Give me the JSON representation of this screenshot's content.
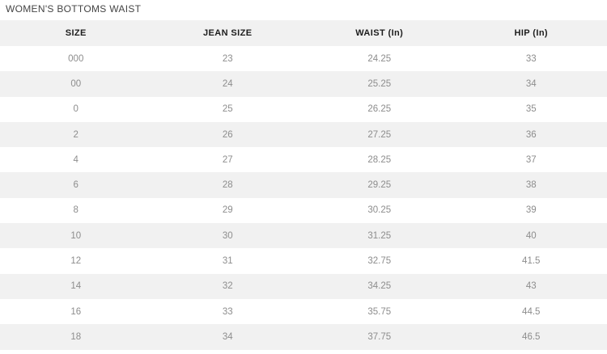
{
  "title": "WOMEN'S BOTTOMS WAIST",
  "colors": {
    "stripe": "#f1f1f1",
    "header_text": "#1d1d1d",
    "cell_text": "#8d8d8d",
    "title_text": "#454545"
  },
  "table": {
    "columns": [
      "SIZE",
      "JEAN SIZE",
      "WAIST (In)",
      "HIP (In)"
    ],
    "rows": [
      [
        "000",
        "23",
        "24.25",
        "33"
      ],
      [
        "00",
        "24",
        "25.25",
        "34"
      ],
      [
        "0",
        "25",
        "26.25",
        "35"
      ],
      [
        "2",
        "26",
        "27.25",
        "36"
      ],
      [
        "4",
        "27",
        "28.25",
        "37"
      ],
      [
        "6",
        "28",
        "29.25",
        "38"
      ],
      [
        "8",
        "29",
        "30.25",
        "39"
      ],
      [
        "10",
        "30",
        "31.25",
        "40"
      ],
      [
        "12",
        "31",
        "32.75",
        "41.5"
      ],
      [
        "14",
        "32",
        "34.25",
        "43"
      ],
      [
        "16",
        "33",
        "35.75",
        "44.5"
      ],
      [
        "18",
        "34",
        "37.75",
        "46.5"
      ]
    ]
  }
}
